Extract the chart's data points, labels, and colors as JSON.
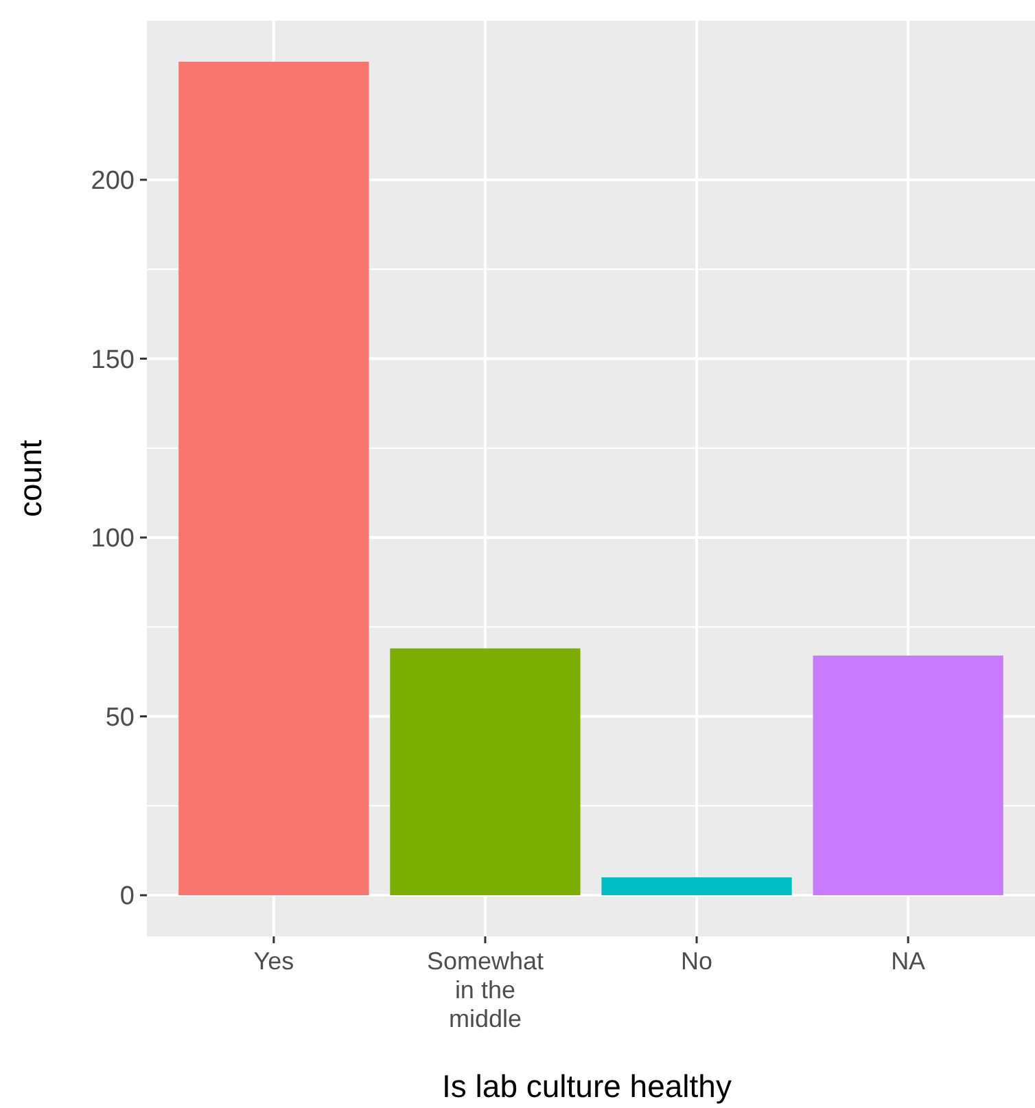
{
  "chart_data": {
    "type": "bar",
    "xlabel": "Is lab culture healthy",
    "ylabel": "count",
    "categories": [
      "Yes",
      "Somewhat in the middle",
      "No",
      "NA"
    ],
    "values": [
      233,
      69,
      5,
      67
    ],
    "colors": [
      "#f8766d",
      "#7cae00",
      "#00bfc4",
      "#c77cff"
    ],
    "ylim": [
      -11.5,
      244.5
    ],
    "yticks": [
      0,
      50,
      100,
      150,
      200
    ],
    "grid": true
  }
}
